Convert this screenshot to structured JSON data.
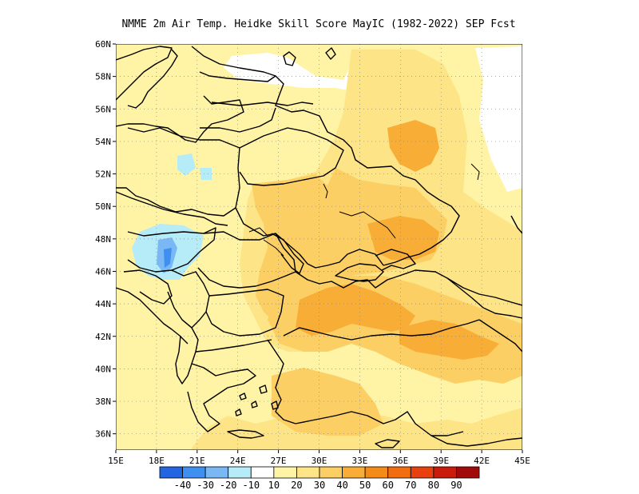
{
  "title": "NMME  2m Air Temp. Heidke Skill Score MayIC (1982-2022) SEP Fcst",
  "map": {
    "lon_range": [
      15,
      45
    ],
    "lat_range": [
      35,
      60
    ],
    "lon_ticks": [
      {
        "value": 15,
        "label": "15E"
      },
      {
        "value": 18,
        "label": "18E"
      },
      {
        "value": 21,
        "label": "21E"
      },
      {
        "value": 24,
        "label": "24E"
      },
      {
        "value": 27,
        "label": "27E"
      },
      {
        "value": 30,
        "label": "30E"
      },
      {
        "value": 33,
        "label": "33E"
      },
      {
        "value": 36,
        "label": "36E"
      },
      {
        "value": 39,
        "label": "39E"
      },
      {
        "value": 42,
        "label": "42E"
      },
      {
        "value": 45,
        "label": "45E"
      }
    ],
    "lat_ticks": [
      {
        "value": 36,
        "label": "36N"
      },
      {
        "value": 38,
        "label": "38N"
      },
      {
        "value": 40,
        "label": "40N"
      },
      {
        "value": 42,
        "label": "42N"
      },
      {
        "value": 44,
        "label": "44N"
      },
      {
        "value": 46,
        "label": "46N"
      },
      {
        "value": 48,
        "label": "48N"
      },
      {
        "value": 50,
        "label": "50N"
      },
      {
        "value": 52,
        "label": "52N"
      },
      {
        "value": 54,
        "label": "54N"
      },
      {
        "value": 56,
        "label": "56N"
      },
      {
        "value": 58,
        "label": "58N"
      },
      {
        "value": 60,
        "label": "60N"
      }
    ],
    "grid": "dotted"
  },
  "colorbar": {
    "colors": [
      "#2166e0",
      "#3f8ff0",
      "#7ab8f5",
      "#b5ecf8",
      "#ffffff",
      "#fff3a6",
      "#fde587",
      "#fbcf63",
      "#f7ad36",
      "#f48b18",
      "#f26d10",
      "#e8400e",
      "#c81b0c",
      "#a00a0a"
    ],
    "labels": [
      "-40",
      "-30",
      "-20",
      "-10",
      "10",
      "20",
      "30",
      "40",
      "50",
      "60",
      "70",
      "80",
      "90"
    ]
  }
}
